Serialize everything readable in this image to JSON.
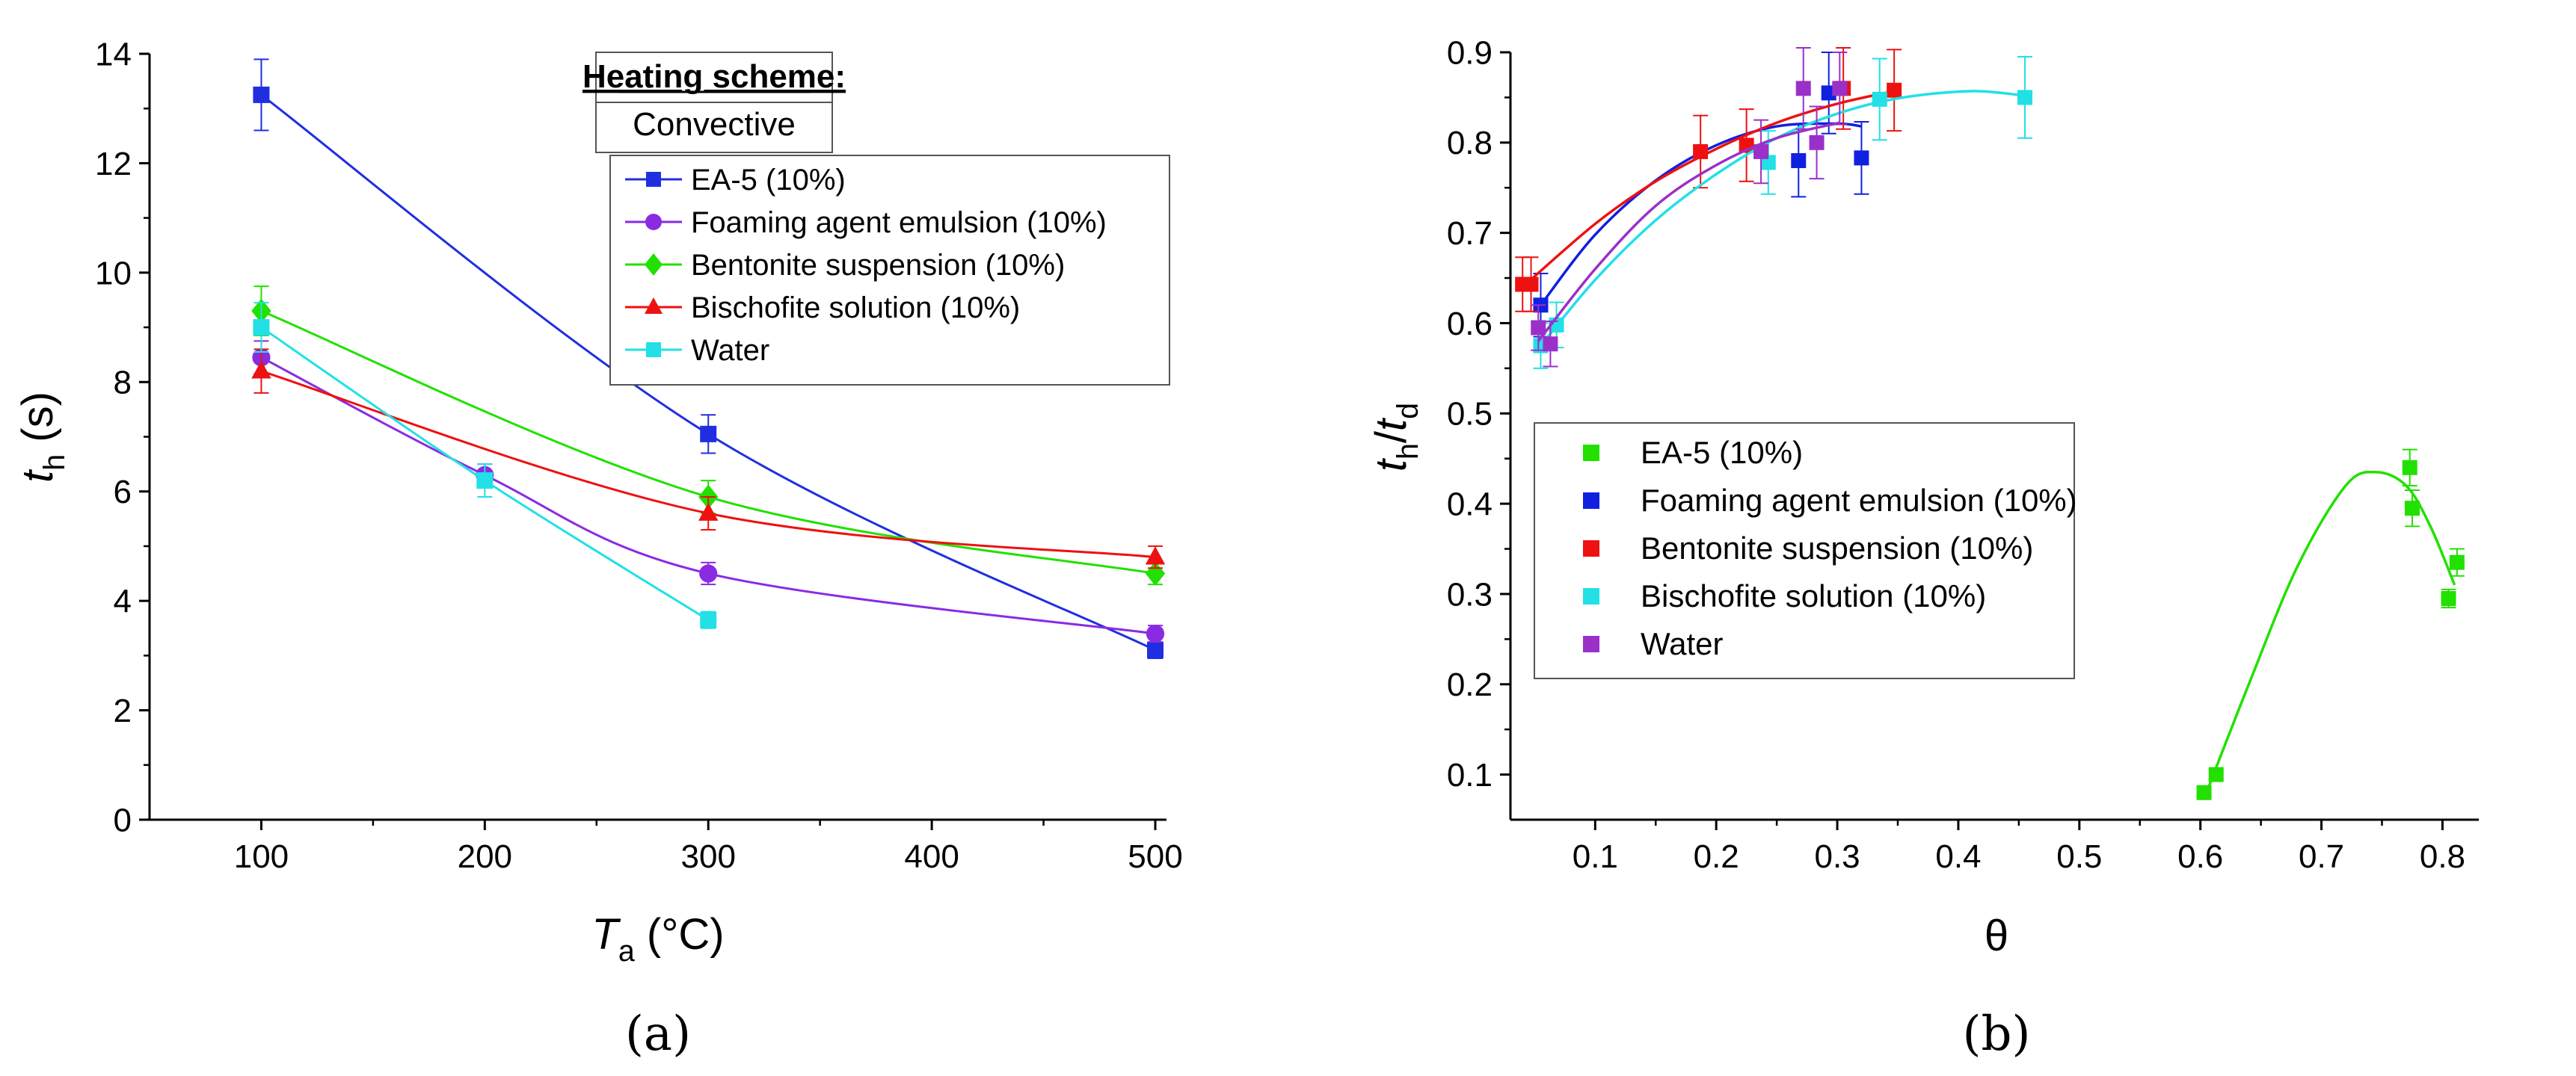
{
  "chart_data": [
    {
      "id": "a",
      "type": "line",
      "panel_label": "(a)",
      "xlabel": {
        "main": "T",
        "sub": "a",
        "unit": " (°C)"
      },
      "ylabel": {
        "main": "t",
        "sub": "h",
        "unit": " (s)"
      },
      "xlim": [
        50,
        500
      ],
      "ylim": [
        0,
        14
      ],
      "xticks": [
        100,
        200,
        300,
        400,
        500
      ],
      "yticks": [
        0,
        2,
        4,
        6,
        8,
        10,
        12,
        14
      ],
      "grid": false,
      "legend_header": {
        "title": "Heating scheme:",
        "subtitle": "Convective"
      },
      "legend_position": "top-right",
      "series": [
        {
          "name": "EA-5 (10%)",
          "color": "#1f2fe0",
          "marker": "square",
          "x": [
            100,
            300,
            500
          ],
          "y": [
            13.25,
            7.05,
            3.1
          ],
          "err": [
            0.65,
            0.35,
            0.15
          ]
        },
        {
          "name": "Foaming agent emulsion (10%)",
          "color": "#8a2be2",
          "marker": "circle",
          "x": [
            100,
            200,
            300,
            500
          ],
          "y": [
            8.45,
            6.3,
            4.5,
            3.4
          ],
          "err": [
            0.3,
            0.2,
            0.2,
            0.15
          ]
        },
        {
          "name": "Bentonite suspension (10%)",
          "color": "#22e000",
          "marker": "diamond",
          "x": [
            100,
            300,
            500
          ],
          "y": [
            9.3,
            5.9,
            4.5
          ],
          "err": [
            0.45,
            0.3,
            0.2
          ]
        },
        {
          "name": "Bischofite solution (10%)",
          "color": "#ee1111",
          "marker": "triangle",
          "x": [
            100,
            300,
            500
          ],
          "y": [
            8.2,
            5.6,
            4.8
          ],
          "err": [
            0.4,
            0.3,
            0.2
          ]
        },
        {
          "name": "Water",
          "color": "#22e0e6",
          "marker": "square",
          "x": [
            100,
            200,
            300
          ],
          "y": [
            9.0,
            6.2,
            3.65
          ],
          "err": [
            0.45,
            0.3,
            0.15
          ]
        }
      ]
    },
    {
      "id": "b",
      "type": "scatter",
      "panel_label": "(b)",
      "xlabel": {
        "main": "θ",
        "sub": "",
        "unit": ""
      },
      "ylabel": {
        "main": "t",
        "sub": "h",
        "sep": "/",
        "main2": "t",
        "sub2": "d"
      },
      "xlim": [
        0.03,
        0.83
      ],
      "ylim": [
        0.05,
        0.9
      ],
      "xticks": [
        0.1,
        0.2,
        0.3,
        0.4,
        0.5,
        0.6,
        0.7,
        0.8
      ],
      "yticks": [
        0.1,
        0.2,
        0.3,
        0.4,
        0.5,
        0.6,
        0.7,
        0.8,
        0.9
      ],
      "grid": false,
      "legend_position": "middle-left",
      "series": [
        {
          "name": "EA-5 (10%)",
          "color": "#22e000",
          "x": [
            0.603,
            0.613,
            0.773,
            0.775,
            0.805,
            0.812
          ],
          "y": [
            0.08,
            0.1,
            0.44,
            0.395,
            0.295,
            0.335
          ],
          "err": [
            0.005,
            0.005,
            0.02,
            0.02,
            0.01,
            0.015
          ],
          "fit": [
            [
              0.605,
              0.08
            ],
            [
              0.64,
              0.2
            ],
            [
              0.68,
              0.33
            ],
            [
              0.72,
              0.42
            ],
            [
              0.745,
              0.435
            ],
            [
              0.77,
              0.42
            ],
            [
              0.79,
              0.375
            ],
            [
              0.81,
              0.31
            ]
          ]
        },
        {
          "name": "Foaming agent emulsion (10%)",
          "color": "#1020e0",
          "x": [
            0.055,
            0.268,
            0.293,
            0.32
          ],
          "y": [
            0.62,
            0.78,
            0.855,
            0.783
          ],
          "err": [
            0.035,
            0.04,
            0.045,
            0.04
          ],
          "fit": [
            [
              0.055,
              0.62
            ],
            [
              0.1,
              0.698
            ],
            [
              0.15,
              0.758
            ],
            [
              0.2,
              0.797
            ],
            [
              0.25,
              0.818
            ],
            [
              0.3,
              0.821
            ],
            [
              0.32,
              0.818
            ]
          ]
        },
        {
          "name": "Bentonite suspension (10%)",
          "color": "#ee1111",
          "x": [
            0.04,
            0.047,
            0.187,
            0.225,
            0.305,
            0.347
          ],
          "y": [
            0.643,
            0.643,
            0.79,
            0.797,
            0.86,
            0.858
          ],
          "err": [
            0.03,
            0.03,
            0.04,
            0.04,
            0.045,
            0.045
          ],
          "fit": [
            [
              0.04,
              0.64
            ],
            [
              0.1,
              0.71
            ],
            [
              0.15,
              0.757
            ],
            [
              0.2,
              0.793
            ],
            [
              0.25,
              0.822
            ],
            [
              0.3,
              0.843
            ],
            [
              0.347,
              0.857
            ]
          ]
        },
        {
          "name": "Bischofite solution (10%)",
          "color": "#22e0e6",
          "x": [
            0.055,
            0.068,
            0.243,
            0.335,
            0.455
          ],
          "y": [
            0.575,
            0.598,
            0.778,
            0.848,
            0.85
          ],
          "err": [
            0.025,
            0.025,
            0.035,
            0.045,
            0.045
          ],
          "fit": [
            [
              0.055,
              0.575
            ],
            [
              0.1,
              0.648
            ],
            [
              0.15,
              0.714
            ],
            [
              0.2,
              0.765
            ],
            [
              0.25,
              0.805
            ],
            [
              0.3,
              0.832
            ],
            [
              0.35,
              0.849
            ],
            [
              0.41,
              0.857
            ],
            [
              0.455,
              0.852
            ]
          ]
        },
        {
          "name": "Water",
          "color": "#9b30c8",
          "x": [
            0.053,
            0.063,
            0.237,
            0.272,
            0.283,
            0.302
          ],
          "y": [
            0.595,
            0.577,
            0.79,
            0.86,
            0.8,
            0.86
          ],
          "err": [
            0.025,
            0.025,
            0.035,
            0.045,
            0.04,
            0.04
          ],
          "fit": [
            [
              0.053,
              0.58
            ],
            [
              0.1,
              0.66
            ],
            [
              0.15,
              0.73
            ],
            [
              0.2,
              0.775
            ],
            [
              0.25,
              0.805
            ],
            [
              0.302,
              0.822
            ]
          ]
        }
      ]
    }
  ]
}
